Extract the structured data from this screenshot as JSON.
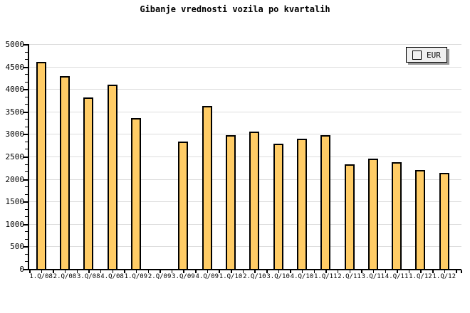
{
  "title": "Gibanje vrednosti vozila po kvartalih",
  "legend": {
    "label": "EUR"
  },
  "colors": {
    "background": "#ffffff",
    "bar_fill": "#ffcc66",
    "bar_border": "#000000",
    "gridline": "#dddddd",
    "axis": "#000000",
    "text": "#000000",
    "legend_bg": "#efefef",
    "legend_border": "#000000",
    "legend_shadow": "#999999"
  },
  "chart_data": {
    "type": "bar",
    "title": "Gibanje vrednosti vozila po kvartalih",
    "series_name": "EUR",
    "categories": [
      "1.Q/08",
      "2.Q/08",
      "3.Q/08",
      "4.Q/08",
      "1.Q/09",
      "2.Q/09",
      "3.Q/09",
      "4.Q/09",
      "1.Q/10",
      "2.Q/10",
      "3.Q/10",
      "4.Q/10",
      "1.Q/11",
      "2.Q/11",
      "3.Q/11",
      "4.Q/11",
      "1.Q/12",
      "1.Q/12"
    ],
    "values": [
      4600,
      4290,
      3820,
      4100,
      3360,
      0,
      2840,
      3630,
      2980,
      3050,
      2780,
      2900,
      2970,
      2330,
      2450,
      2380,
      2200,
      2130
    ],
    "xlabel": "",
    "ylabel": "",
    "ylim": [
      0,
      5000
    ],
    "ytick_step": 500,
    "yminor_per_major": 3,
    "ytick_labels": [
      "0",
      "500",
      "1000",
      "1500",
      "2000",
      "2500",
      "3000",
      "3500",
      "4000",
      "4500",
      "5000"
    ],
    "grid": "horizontal-major",
    "legend_position": "top-right",
    "notes": "no bar for 2.Q/09; last two category labels both read 1.Q/12"
  }
}
